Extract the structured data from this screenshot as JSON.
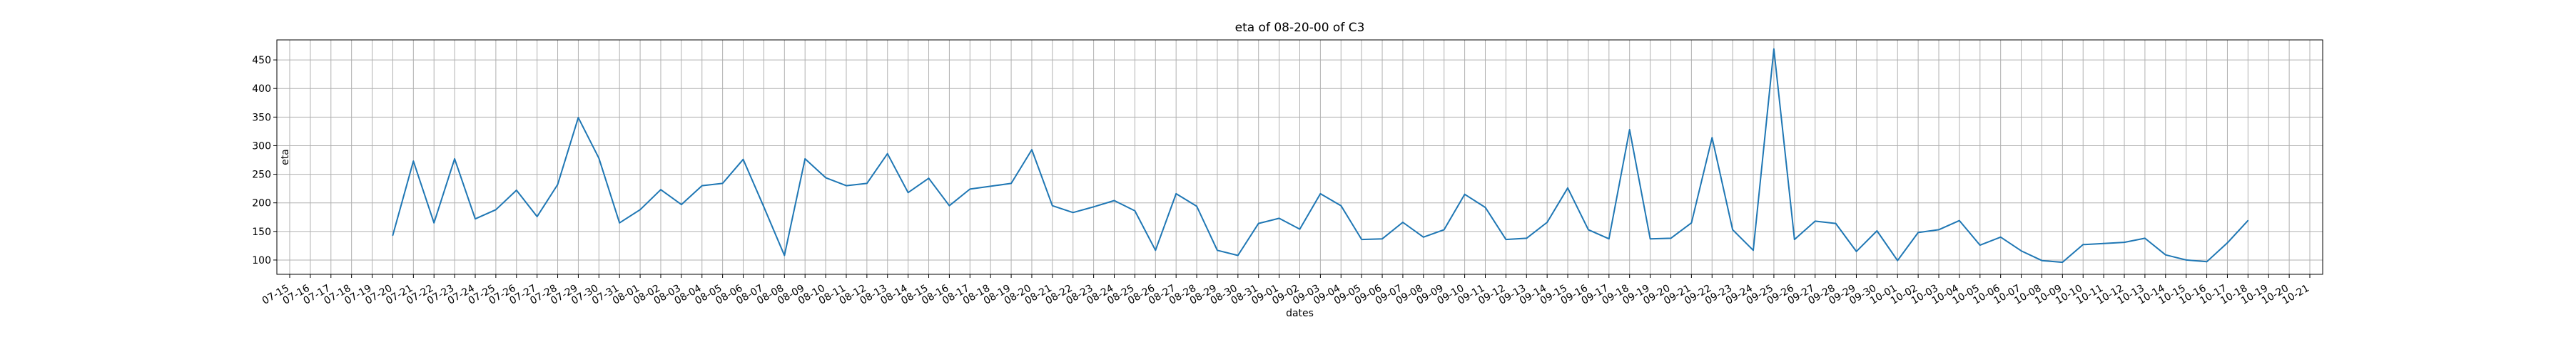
{
  "chart_data": {
    "type": "line",
    "title": "eta of 08-20-00 of C3",
    "xlabel": "dates",
    "ylabel": "eta",
    "grid": true,
    "ylim": [
      75,
      485
    ],
    "yticks": [
      100,
      150,
      200,
      250,
      300,
      350,
      400,
      450
    ],
    "line_color": "#1f77b4",
    "xtick_labels": [
      "07-15",
      "07-16",
      "07-17",
      "07-18",
      "07-19",
      "07-20",
      "07-21",
      "07-22",
      "07-23",
      "07-24",
      "07-25",
      "07-26",
      "07-27",
      "07-28",
      "07-29",
      "07-30",
      "07-31",
      "08-01",
      "08-02",
      "08-03",
      "08-04",
      "08-05",
      "08-06",
      "08-07",
      "08-08",
      "08-09",
      "08-10",
      "08-11",
      "08-12",
      "08-13",
      "08-14",
      "08-15",
      "08-16",
      "08-17",
      "08-18",
      "08-19",
      "08-20",
      "08-21",
      "08-22",
      "08-23",
      "08-24",
      "08-25",
      "08-26",
      "08-27",
      "08-28",
      "08-29",
      "08-30",
      "08-31",
      "09-01",
      "09-02",
      "09-03",
      "09-04",
      "09-05",
      "09-06",
      "09-07",
      "09-08",
      "09-09",
      "09-10",
      "09-11",
      "09-12",
      "09-13",
      "09-14",
      "09-15",
      "09-16",
      "09-17",
      "09-18",
      "09-19",
      "09-20",
      "09-21",
      "09-22",
      "09-23",
      "09-24",
      "09-25",
      "09-26",
      "09-27",
      "09-28",
      "09-29",
      "09-30",
      "10-01",
      "10-02",
      "10-03",
      "10-04",
      "10-05",
      "10-06",
      "10-07",
      "10-08",
      "10-09",
      "10-10",
      "10-11",
      "10-12",
      "10-13",
      "10-14",
      "10-15",
      "10-16",
      "10-17",
      "10-18",
      "10-19",
      "10-20",
      "10-21"
    ],
    "series": [
      {
        "values": [
          {
            "x": "07-20",
            "y": 143
          },
          {
            "x": "07-21",
            "y": 273
          },
          {
            "x": "07-22",
            "y": 165
          },
          {
            "x": "07-23",
            "y": 277
          },
          {
            "x": "07-24",
            "y": 172
          },
          {
            "x": "07-25",
            "y": 188
          },
          {
            "x": "07-26",
            "y": 222
          },
          {
            "x": "07-27",
            "y": 176
          },
          {
            "x": "07-28",
            "y": 232
          },
          {
            "x": "07-29",
            "y": 349
          },
          {
            "x": "07-30",
            "y": 278
          },
          {
            "x": "07-31",
            "y": 165
          },
          {
            "x": "08-01",
            "y": 188
          },
          {
            "x": "08-02",
            "y": 223
          },
          {
            "x": "08-03",
            "y": 197
          },
          {
            "x": "08-04",
            "y": 230
          },
          {
            "x": "08-05",
            "y": 234
          },
          {
            "x": "08-06",
            "y": 276
          },
          {
            "x": "08-07",
            "y": 193
          },
          {
            "x": "08-08",
            "y": 108
          },
          {
            "x": "08-09",
            "y": 277
          },
          {
            "x": "08-10",
            "y": 244
          },
          {
            "x": "08-11",
            "y": 230
          },
          {
            "x": "08-12",
            "y": 234
          },
          {
            "x": "08-13",
            "y": 286
          },
          {
            "x": "08-14",
            "y": 218
          },
          {
            "x": "08-15",
            "y": 243
          },
          {
            "x": "08-16",
            "y": 195
          },
          {
            "x": "08-17",
            "y": 224
          },
          {
            "x": "08-18",
            "y": 229
          },
          {
            "x": "08-19",
            "y": 234
          },
          {
            "x": "08-20",
            "y": 293
          },
          {
            "x": "08-21",
            "y": 195
          },
          {
            "x": "08-22",
            "y": 183
          },
          {
            "x": "08-23",
            "y": 193
          },
          {
            "x": "08-24",
            "y": 204
          },
          {
            "x": "08-25",
            "y": 186
          },
          {
            "x": "08-26",
            "y": 117
          },
          {
            "x": "08-27",
            "y": 216
          },
          {
            "x": "08-28",
            "y": 194
          },
          {
            "x": "08-29",
            "y": 117
          },
          {
            "x": "08-30",
            "y": 108
          },
          {
            "x": "08-31",
            "y": 164
          },
          {
            "x": "09-01",
            "y": 173
          },
          {
            "x": "09-02",
            "y": 154
          },
          {
            "x": "09-03",
            "y": 216
          },
          {
            "x": "09-04",
            "y": 195
          },
          {
            "x": "09-05",
            "y": 136
          },
          {
            "x": "09-06",
            "y": 137
          },
          {
            "x": "09-07",
            "y": 166
          },
          {
            "x": "09-08",
            "y": 140
          },
          {
            "x": "09-09",
            "y": 153
          },
          {
            "x": "09-10",
            "y": 215
          },
          {
            "x": "09-11",
            "y": 192
          },
          {
            "x": "09-12",
            "y": 136
          },
          {
            "x": "09-13",
            "y": 138
          },
          {
            "x": "09-14",
            "y": 166
          },
          {
            "x": "09-15",
            "y": 226
          },
          {
            "x": "09-16",
            "y": 153
          },
          {
            "x": "09-17",
            "y": 137
          },
          {
            "x": "09-18",
            "y": 328
          },
          {
            "x": "09-19",
            "y": 137
          },
          {
            "x": "09-20",
            "y": 138
          },
          {
            "x": "09-21",
            "y": 165
          },
          {
            "x": "09-22",
            "y": 314
          },
          {
            "x": "09-23",
            "y": 153
          },
          {
            "x": "09-24",
            "y": 117
          },
          {
            "x": "09-25",
            "y": 469
          },
          {
            "x": "09-26",
            "y": 136
          },
          {
            "x": "09-27",
            "y": 168
          },
          {
            "x": "09-28",
            "y": 164
          },
          {
            "x": "09-29",
            "y": 115
          },
          {
            "x": "09-30",
            "y": 151
          },
          {
            "x": "10-01",
            "y": 99
          },
          {
            "x": "10-02",
            "y": 148
          },
          {
            "x": "10-03",
            "y": 153
          },
          {
            "x": "10-04",
            "y": 169
          },
          {
            "x": "10-05",
            "y": 126
          },
          {
            "x": "10-06",
            "y": 140
          },
          {
            "x": "10-07",
            "y": 116
          },
          {
            "x": "10-08",
            "y": 99
          },
          {
            "x": "10-09",
            "y": 96
          },
          {
            "x": "10-10",
            "y": 127
          },
          {
            "x": "10-11",
            "y": 129
          },
          {
            "x": "10-12",
            "y": 131
          },
          {
            "x": "10-13",
            "y": 138
          },
          {
            "x": "10-14",
            "y": 109
          },
          {
            "x": "10-15",
            "y": 100
          },
          {
            "x": "10-16",
            "y": 97
          },
          {
            "x": "10-17",
            "y": 130
          },
          {
            "x": "10-18",
            "y": 169
          }
        ]
      }
    ]
  }
}
